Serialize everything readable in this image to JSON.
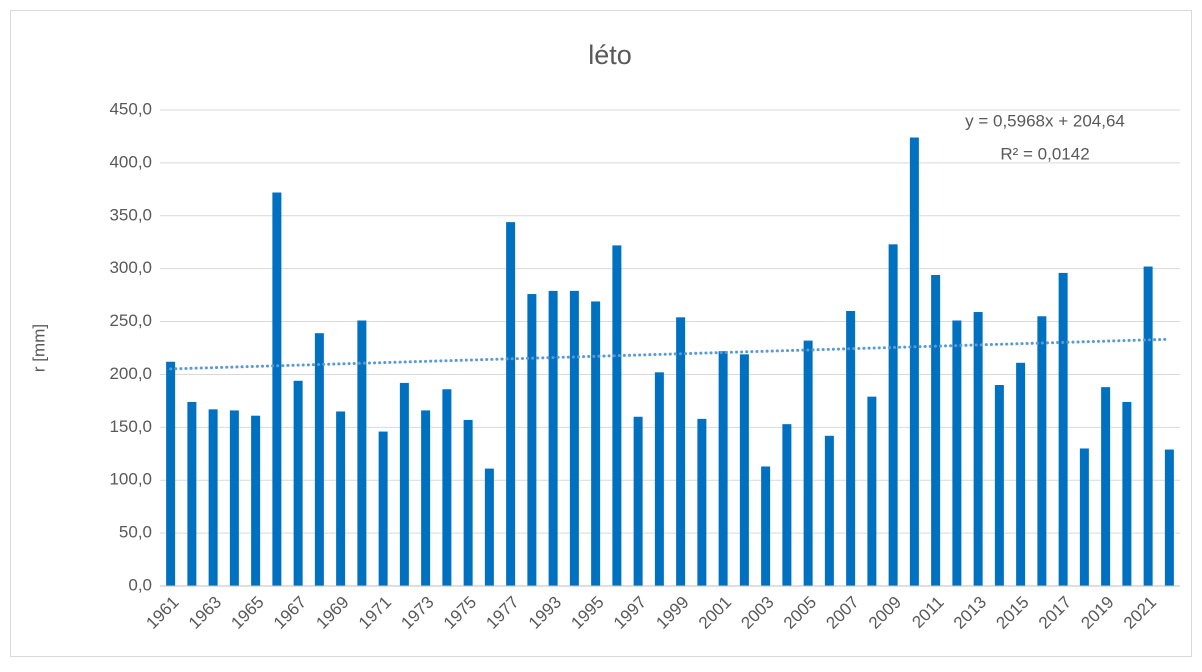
{
  "chart_data": {
    "type": "bar",
    "title": "léto",
    "ylabel": "r [mm]",
    "categories": [
      "1961",
      null,
      "1963",
      null,
      "1965",
      null,
      "1967",
      null,
      "1969",
      null,
      "1971",
      null,
      "1973",
      null,
      "1975",
      null,
      "1977",
      null,
      "1993",
      null,
      "1995",
      null,
      "1997",
      null,
      "1999",
      null,
      "2001",
      null,
      "2003",
      null,
      "2005",
      null,
      "2007",
      null,
      "2009",
      null,
      "2011",
      null,
      "2013",
      null,
      "2015",
      null,
      "2017",
      null,
      "2019",
      null,
      "2021",
      null
    ],
    "values": [
      212,
      174,
      167,
      166,
      161,
      372,
      194,
      239,
      165,
      251,
      146,
      192,
      166,
      186,
      157,
      111,
      344,
      276,
      279,
      279,
      269,
      322,
      160,
      202,
      254,
      158,
      222,
      219,
      113,
      153,
      232,
      142,
      260,
      179,
      323,
      424,
      294,
      251,
      259,
      190,
      211,
      255,
      296,
      130,
      188,
      174,
      302,
      129
    ],
    "color": "#0070c0",
    "ylim": [
      0,
      450
    ],
    "yticks": [
      {
        "value": 0,
        "label": "0,0"
      },
      {
        "value": 50,
        "label": "50,0"
      },
      {
        "value": 100,
        "label": "100,0"
      },
      {
        "value": 150,
        "label": "150,0"
      },
      {
        "value": 200,
        "label": "200,0"
      },
      {
        "value": 250,
        "label": "250,0"
      },
      {
        "value": 300,
        "label": "300,0"
      },
      {
        "value": 350,
        "label": "350,0"
      },
      {
        "value": 400,
        "label": "400,0"
      },
      {
        "value": 450,
        "label": "450,0"
      }
    ],
    "grid": true,
    "trendline": {
      "slope": 0.5968,
      "intercept": 204.64,
      "color": "#5b9bd5"
    },
    "annotations": [
      "y = 0,5968x + 204,64",
      "R² = 0,0142"
    ]
  }
}
